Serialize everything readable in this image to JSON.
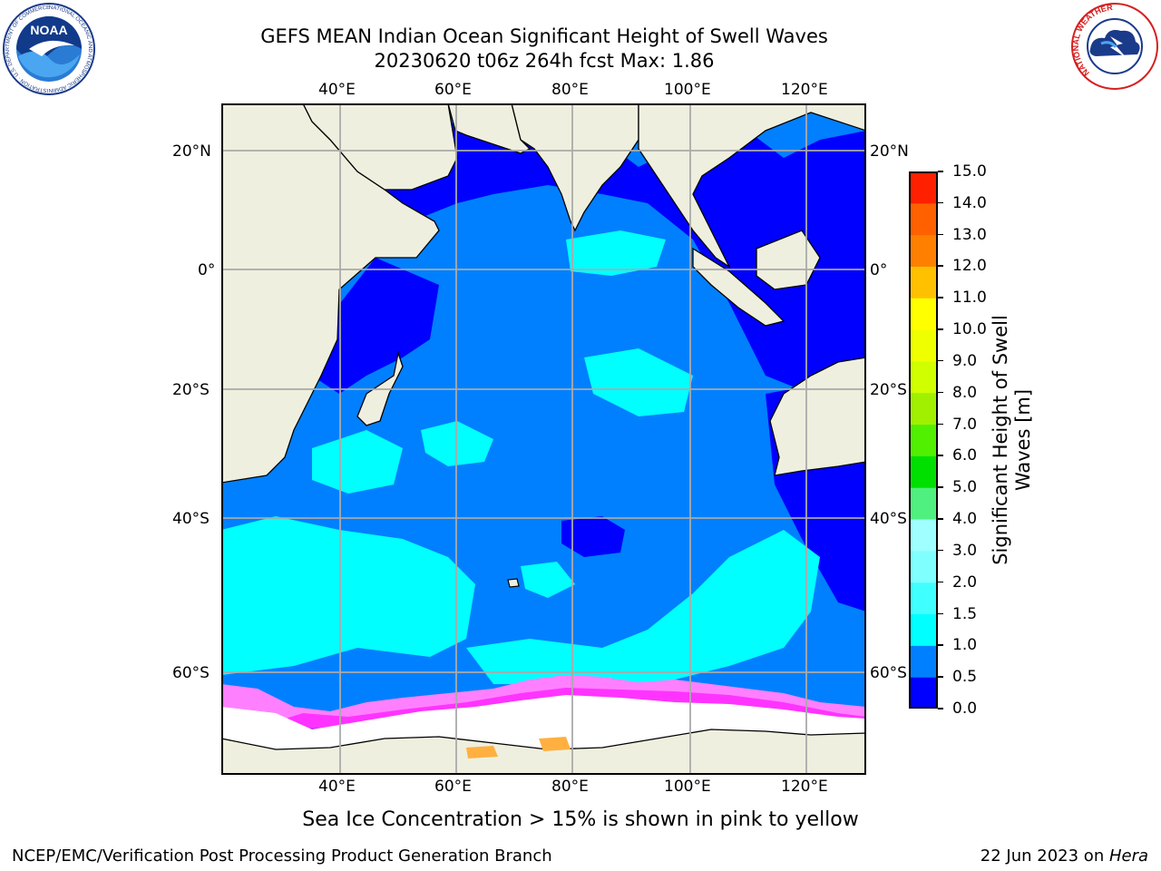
{
  "header": {
    "title_line1": "GEFS MEAN Indian Ocean Significant Height of Swell Waves",
    "title_line2": "20230620 t06z 264h fcst   Max: 1.86"
  },
  "logos": {
    "left": {
      "name": "noaa-logo",
      "text": "NOAA",
      "ring_text": "NATIONAL OCEANIC AND ATMOSPHERIC ADMINISTRATION · U.S. DEPARTMENT OF COMMERCE"
    },
    "right": {
      "name": "nws-logo",
      "ring_text": "NATIONAL WEATHER SERVICE"
    }
  },
  "map": {
    "lon_labels": [
      "40°E",
      "60°E",
      "80°E",
      "100°E",
      "120°E"
    ],
    "lat_labels": [
      "20°N",
      "0°",
      "20°S",
      "40°S",
      "60°S"
    ],
    "colors": {
      "land": "#efefdf",
      "ocean_low": "#0000ff",
      "ocean_mid": "#0080ff",
      "ocean_high": "#00ffff",
      "ice": "#ffffff",
      "ice_edge": "#ff80ff",
      "grid": "#aaaaaa"
    }
  },
  "colorbar": {
    "label_line1": "Significant Height of Swell",
    "label_line2": "Waves [m]",
    "ticks": [
      "0.0",
      "0.5",
      "1.0",
      "1.5",
      "2.0",
      "3.0",
      "4.0",
      "5.0",
      "6.0",
      "7.0",
      "8.0",
      "9.0",
      "10.0",
      "11.0",
      "12.0",
      "13.0",
      "14.0",
      "15.0"
    ],
    "colors": [
      "#0000ff",
      "#0080ff",
      "#00ffff",
      "#40ffff",
      "#80ffff",
      "#a0ffff",
      "#50f080",
      "#00e000",
      "#50f000",
      "#a0f000",
      "#d0ff00",
      "#f0ff00",
      "#ffff00",
      "#ffc000",
      "#ff8000",
      "#ff6000",
      "#ff2000",
      "#ff0000"
    ]
  },
  "annotation": "Sea Ice Concentration > 15% is shown in pink to yellow",
  "footer": {
    "left": "NCEP/EMC/Verification Post Processing Product Generation Branch",
    "right_date": "22 Jun 2023 on ",
    "right_host": "Hera"
  }
}
